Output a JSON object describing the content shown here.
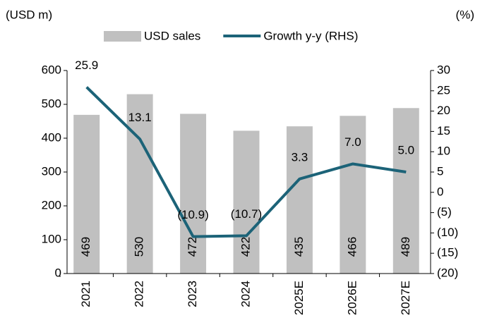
{
  "chart_data": {
    "type": "bar",
    "y_label": "(USD m)",
    "y2_label": "(%)",
    "categories": [
      "2021",
      "2022",
      "2023",
      "2024",
      "2025E",
      "2026E",
      "2027E"
    ],
    "series": [
      {
        "name": "USD sales",
        "type": "bar",
        "color": "#c0c0c0",
        "values": [
          469,
          530,
          472,
          422,
          435,
          466,
          489
        ]
      },
      {
        "name": "Growth y-y (RHS)",
        "type": "line",
        "axis": "y2",
        "color": "#1c6378",
        "values": [
          25.9,
          13.1,
          -10.9,
          -10.7,
          3.3,
          7.0,
          5.0
        ],
        "value_labels": [
          "25.9",
          "13.1",
          "(10.9)",
          "(10.7)",
          "3.3",
          "7.0",
          "5.0"
        ]
      }
    ],
    "ylim": [
      0,
      600
    ],
    "yticks": [
      0,
      100,
      200,
      300,
      400,
      500,
      600
    ],
    "y2lim": [
      -20,
      30
    ],
    "y2ticks": [
      {
        "value": -20,
        "label": "(20)"
      },
      {
        "value": -15,
        "label": "(15)"
      },
      {
        "value": -10,
        "label": "(10)"
      },
      {
        "value": -5,
        "label": "(5)"
      },
      0,
      5,
      10,
      15,
      20,
      25,
      30
    ],
    "legend": "top",
    "grid": false
  }
}
